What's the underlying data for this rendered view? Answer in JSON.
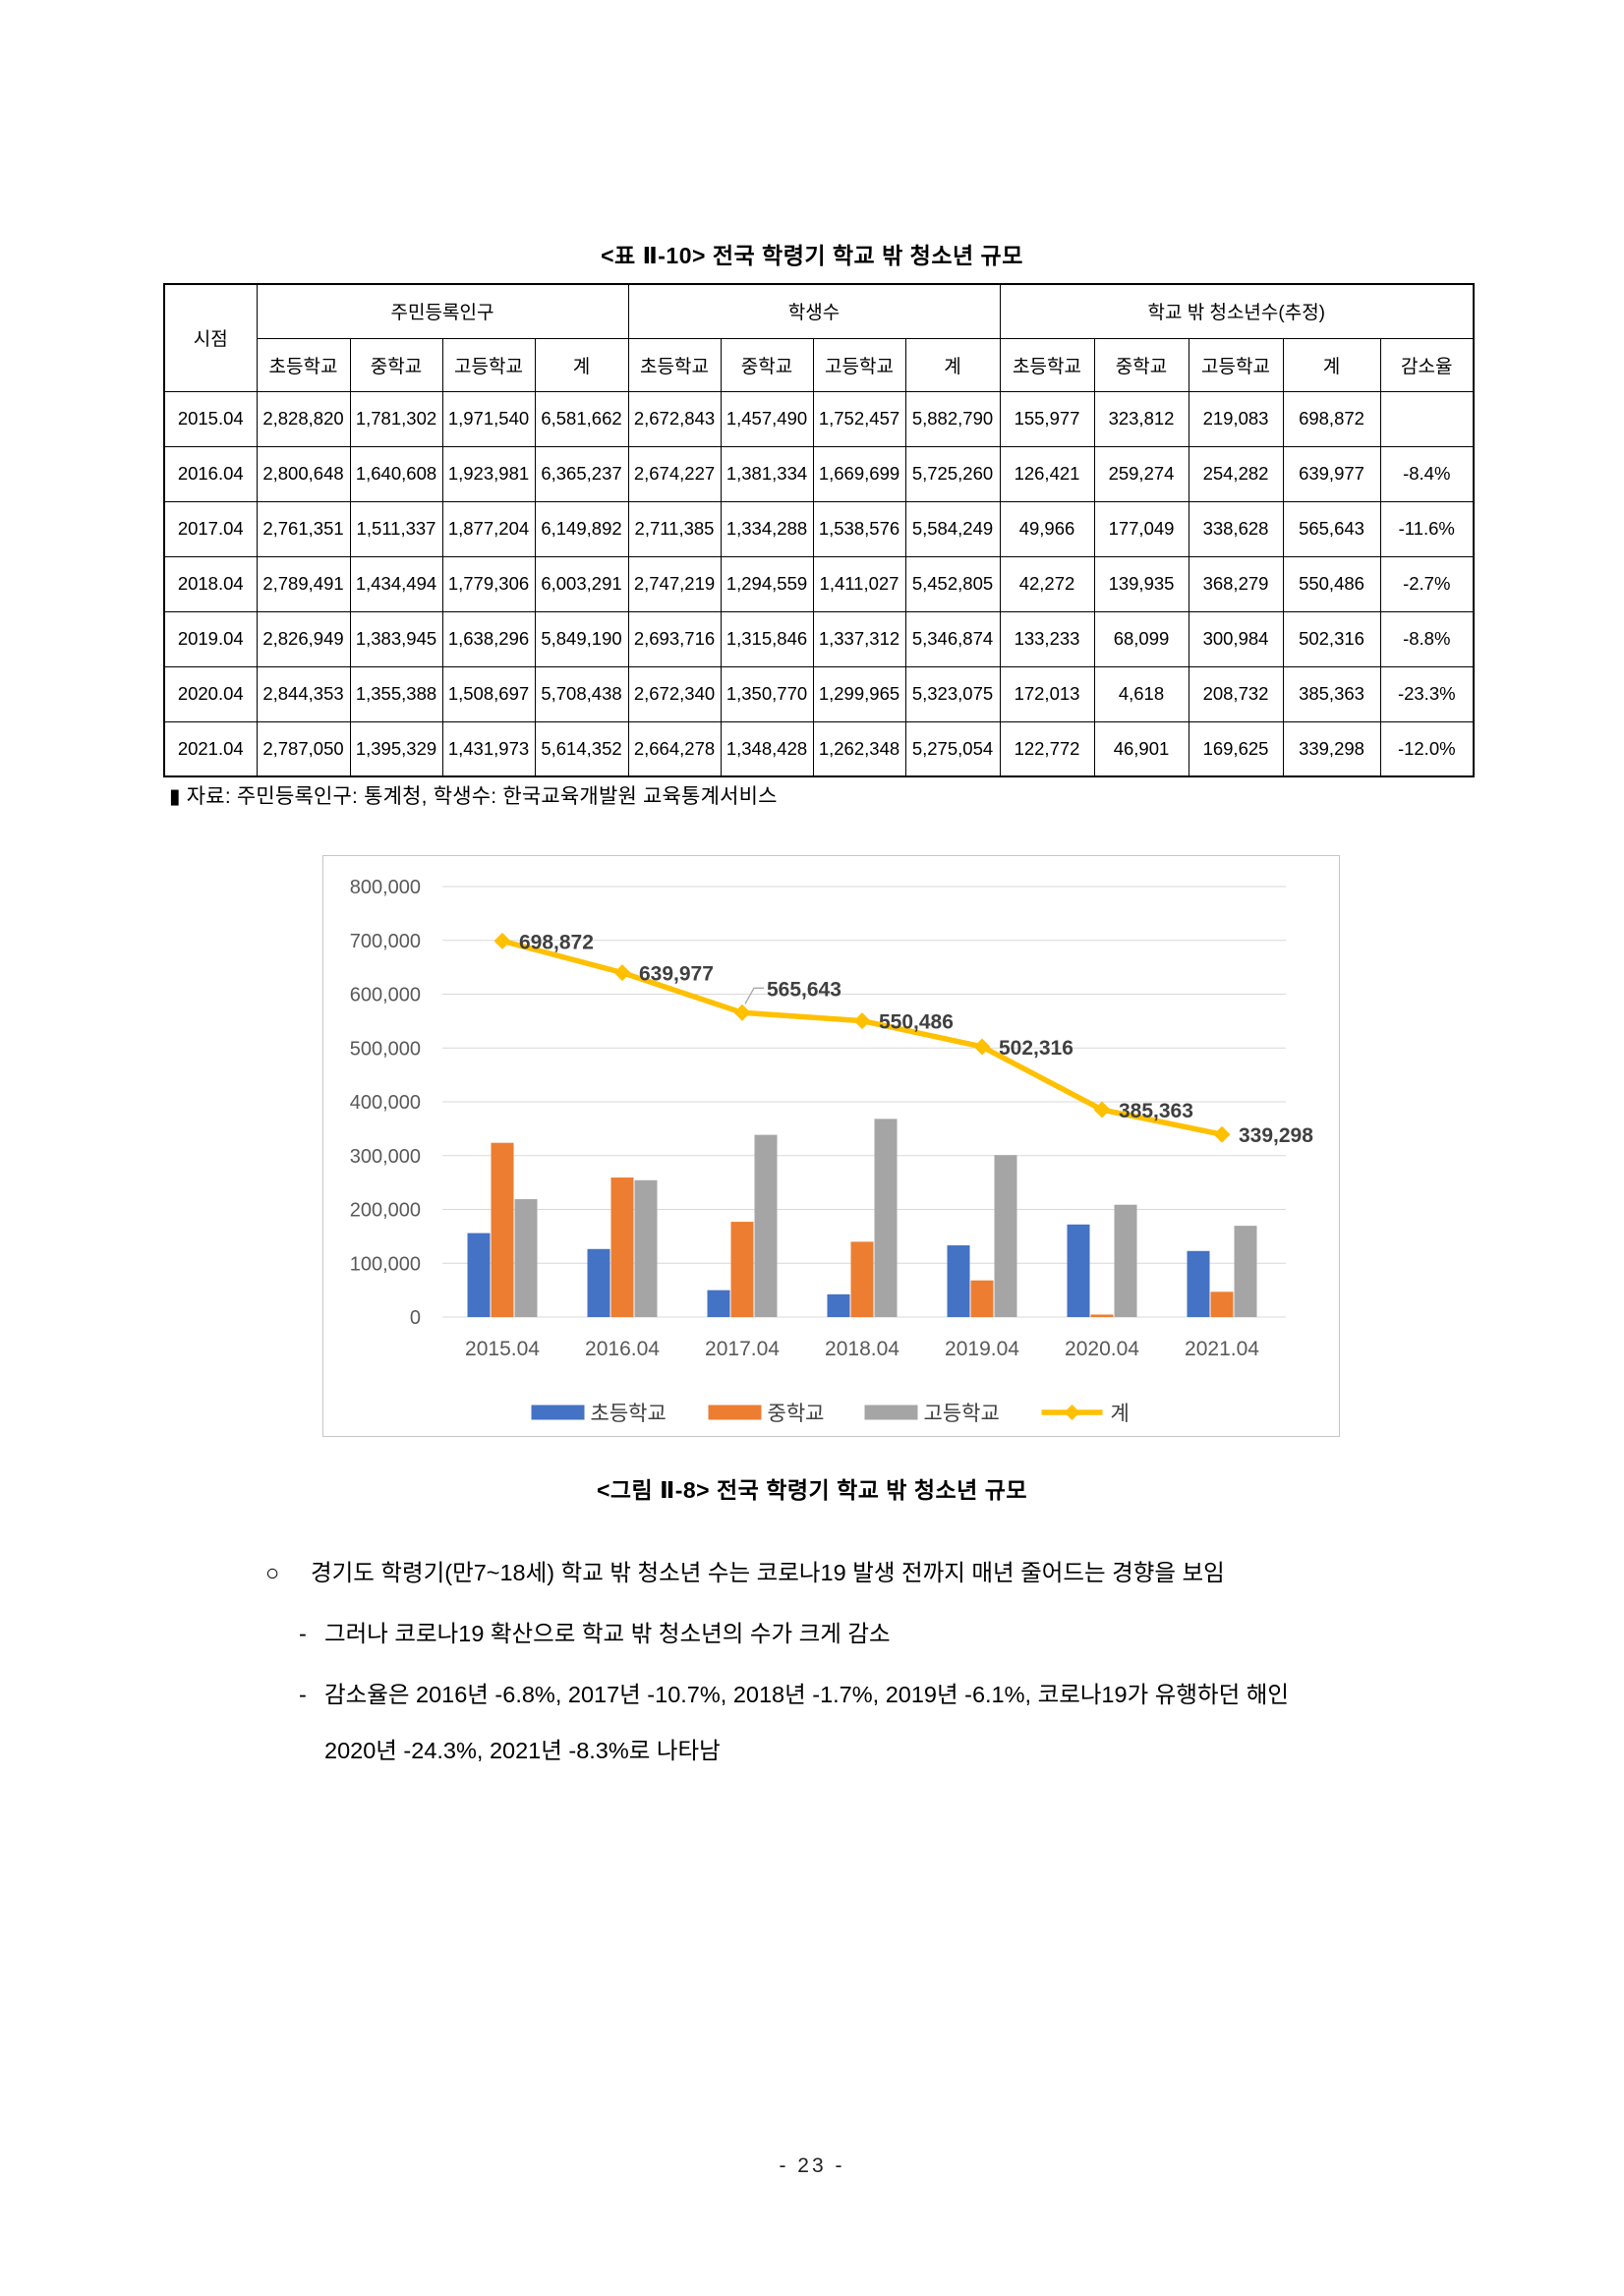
{
  "table": {
    "title": "<표 Ⅱ-10> 전국 학령기 학교 밖 청소년 규모",
    "corner_header": "시점",
    "groups": [
      {
        "label": "주민등록인구",
        "columns": [
          "초등학교",
          "중학교",
          "고등학교",
          "계"
        ]
      },
      {
        "label": "학생수",
        "columns": [
          "초등학교",
          "중학교",
          "고등학교",
          "계"
        ]
      },
      {
        "label": "학교 밖 청소년수(추정)",
        "columns": [
          "초등학교",
          "중학교",
          "고등학교",
          "계",
          "감소율"
        ]
      }
    ],
    "rows": [
      {
        "period": "2015.04",
        "values": [
          "2,828,820",
          "1,781,302",
          "1,971,540",
          "6,581,662",
          "2,672,843",
          "1,457,490",
          "1,752,457",
          "5,882,790",
          "155,977",
          "323,812",
          "219,083",
          "698,872",
          ""
        ]
      },
      {
        "period": "2016.04",
        "values": [
          "2,800,648",
          "1,640,608",
          "1,923,981",
          "6,365,237",
          "2,674,227",
          "1,381,334",
          "1,669,699",
          "5,725,260",
          "126,421",
          "259,274",
          "254,282",
          "639,977",
          "-8.4%"
        ]
      },
      {
        "period": "2017.04",
        "values": [
          "2,761,351",
          "1,511,337",
          "1,877,204",
          "6,149,892",
          "2,711,385",
          "1,334,288",
          "1,538,576",
          "5,584,249",
          "49,966",
          "177,049",
          "338,628",
          "565,643",
          "-11.6%"
        ]
      },
      {
        "period": "2018.04",
        "values": [
          "2,789,491",
          "1,434,494",
          "1,779,306",
          "6,003,291",
          "2,747,219",
          "1,294,559",
          "1,411,027",
          "5,452,805",
          "42,272",
          "139,935",
          "368,279",
          "550,486",
          "-2.7%"
        ]
      },
      {
        "period": "2019.04",
        "values": [
          "2,826,949",
          "1,383,945",
          "1,638,296",
          "5,849,190",
          "2,693,716",
          "1,315,846",
          "1,337,312",
          "5,346,874",
          "133,233",
          "68,099",
          "300,984",
          "502,316",
          "-8.8%"
        ]
      },
      {
        "period": "2020.04",
        "values": [
          "2,844,353",
          "1,355,388",
          "1,508,697",
          "5,708,438",
          "2,672,340",
          "1,350,770",
          "1,299,965",
          "5,323,075",
          "172,013",
          "4,618",
          "208,732",
          "385,363",
          "-23.3%"
        ]
      },
      {
        "period": "2021.04",
        "values": [
          "2,787,050",
          "1,395,329",
          "1,431,973",
          "5,614,352",
          "2,664,278",
          "1,348,428",
          "1,262,348",
          "5,275,054",
          "122,772",
          "46,901",
          "169,625",
          "339,298",
          "-12.0%"
        ]
      }
    ],
    "source": "▮ 자료: 주민등록인구: 통계청, 학생수: 한국교육개발원 교육통계서비스"
  },
  "chart_data": {
    "type": "bar",
    "title": "",
    "xlabel": "",
    "ylabel": "",
    "categories": [
      "2015.04",
      "2016.04",
      "2017.04",
      "2018.04",
      "2019.04",
      "2020.04",
      "2021.04"
    ],
    "series": [
      {
        "name": "초등학교",
        "type": "bar",
        "color": "#4472C4",
        "values": [
          155977,
          126421,
          49966,
          42272,
          133233,
          172013,
          122772
        ]
      },
      {
        "name": "중학교",
        "type": "bar",
        "color": "#ED7D31",
        "values": [
          323812,
          259274,
          177049,
          139935,
          68099,
          4618,
          46901
        ]
      },
      {
        "name": "고등학교",
        "type": "bar",
        "color": "#A5A5A5",
        "values": [
          219083,
          254282,
          338628,
          368279,
          300984,
          208732,
          169625
        ]
      },
      {
        "name": "계",
        "type": "line",
        "color": "#FFC000",
        "values": [
          698872,
          639977,
          565643,
          550486,
          502316,
          385363,
          339298
        ],
        "data_labels": [
          "698,872",
          "639,977",
          "565,643",
          "550,486",
          "502,316",
          "385,363",
          "339,298"
        ]
      }
    ],
    "ylim": [
      0,
      800000
    ],
    "ytick_step": 100000,
    "grid": true,
    "legend_position": "bottom",
    "axis_color": "#595959",
    "gridline_color": "#D9D9D9",
    "data_label_color": "#404040",
    "border_color": "#C8C6C4"
  },
  "figure": {
    "caption": "<그림 Ⅱ-8> 전국 학령기 학교 밖 청소년 규모"
  },
  "body": {
    "items": [
      {
        "marker": "○",
        "text": "경기도 학령기(만7~18세) 학교 밖 청소년 수는 코로나19 발생 전까지 매년 줄어드는 경향을 보임"
      },
      {
        "marker": "-",
        "text": "그러나 코로나19 확산으로 학교 밖 청소년의 수가 크게 감소"
      },
      {
        "marker": "-",
        "text": "감소율은 2016년 -6.8%, 2017년 -10.7%, 2018년 -1.7%, 2019년 -6.1%, 코로나19가 유행하던 해인 2020년 -24.3%, 2021년 -8.3%로 나타남"
      }
    ]
  },
  "page_number": "- 23 -"
}
